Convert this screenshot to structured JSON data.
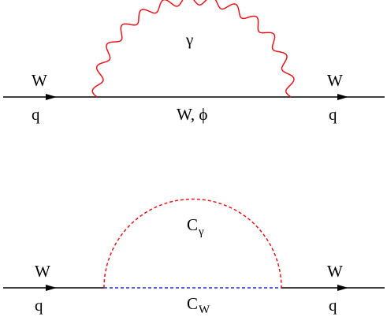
{
  "colors": {
    "line": "#000000",
    "photon": "#e8131a",
    "ghost_arc": "#e8131a",
    "ghost_line": "#1b2fd6"
  },
  "top": {
    "in_label_upper": "W",
    "in_label_lower": "q",
    "out_label_upper": "W",
    "out_label_lower": "q",
    "loop_label": "γ",
    "internal_label": "W, ϕ"
  },
  "bottom": {
    "in_label_upper": "W",
    "in_label_lower": "q",
    "out_label_upper": "W",
    "out_label_lower": "q",
    "arc_label_main": "C",
    "arc_label_sub": "γ",
    "line_label_main": "C",
    "line_label_sub": "W"
  }
}
